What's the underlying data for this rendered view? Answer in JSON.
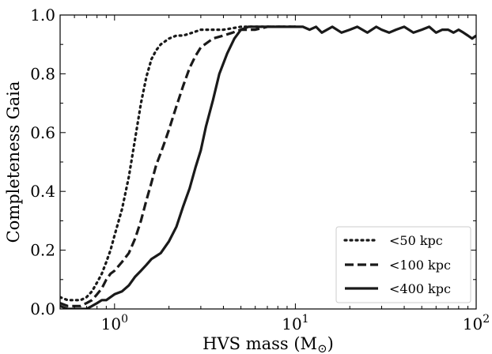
{
  "chart_data": {
    "type": "line",
    "xlabel": "HVS mass (M",
    "xlabel_sub": "⊙",
    "xlabel_close": ")",
    "ylabel": "Completeness Gaia",
    "x_scale": "log",
    "xlim": [
      0.5,
      100
    ],
    "ylim": [
      0.0,
      1.0
    ],
    "x_ticks": [
      {
        "value": 1,
        "base": "10",
        "exp": "0"
      },
      {
        "value": 10,
        "base": "10",
        "exp": "1"
      },
      {
        "value": 100,
        "base": "10",
        "exp": "2"
      }
    ],
    "y_ticks": [
      {
        "value": 0.0,
        "label": "0.0"
      },
      {
        "value": 0.2,
        "label": "0.2"
      },
      {
        "value": 0.4,
        "label": "0.4"
      },
      {
        "value": 0.6,
        "label": "0.6"
      },
      {
        "value": 0.8,
        "label": "0.8"
      },
      {
        "value": 1.0,
        "label": "1.0"
      }
    ],
    "grid": false,
    "legend_position": "lower-right",
    "series": [
      {
        "name": "<50 kpc",
        "style": "dotted",
        "x": [
          0.5,
          0.55,
          0.6,
          0.65,
          0.7,
          0.75,
          0.8,
          0.85,
          0.9,
          0.95,
          1.0,
          1.1,
          1.2,
          1.3,
          1.4,
          1.5,
          1.6,
          1.7,
          1.8,
          1.9,
          2.0,
          2.2,
          2.4,
          2.7,
          3.0,
          3.5,
          4.0,
          5.0,
          6.0,
          7.0,
          8.0,
          10.0
        ],
        "y": [
          0.04,
          0.03,
          0.03,
          0.03,
          0.04,
          0.06,
          0.09,
          0.12,
          0.16,
          0.2,
          0.25,
          0.34,
          0.45,
          0.58,
          0.7,
          0.79,
          0.85,
          0.88,
          0.9,
          0.91,
          0.92,
          0.93,
          0.93,
          0.94,
          0.95,
          0.95,
          0.95,
          0.96,
          0.96,
          0.96,
          0.96,
          0.96
        ]
      },
      {
        "name": "<100 kpc",
        "style": "dashed",
        "x": [
          0.5,
          0.55,
          0.6,
          0.65,
          0.7,
          0.75,
          0.8,
          0.85,
          0.9,
          0.95,
          1.0,
          1.1,
          1.2,
          1.3,
          1.4,
          1.5,
          1.6,
          1.7,
          1.8,
          1.9,
          2.0,
          2.2,
          2.4,
          2.6,
          2.8,
          3.0,
          3.5,
          4.0,
          4.5,
          5.0,
          6.0,
          7.0,
          8.0,
          10.0
        ],
        "y": [
          0.02,
          0.01,
          0.01,
          0.01,
          0.02,
          0.03,
          0.05,
          0.07,
          0.1,
          0.12,
          0.13,
          0.16,
          0.19,
          0.24,
          0.3,
          0.37,
          0.43,
          0.49,
          0.53,
          0.57,
          0.61,
          0.69,
          0.76,
          0.82,
          0.86,
          0.89,
          0.92,
          0.93,
          0.94,
          0.95,
          0.95,
          0.96,
          0.96,
          0.96
        ]
      },
      {
        "name": "<400 kpc",
        "style": "solid",
        "x": [
          0.5,
          0.55,
          0.6,
          0.65,
          0.7,
          0.75,
          0.8,
          0.85,
          0.9,
          0.95,
          1.0,
          1.1,
          1.2,
          1.3,
          1.4,
          1.5,
          1.6,
          1.7,
          1.8,
          2.0,
          2.2,
          2.4,
          2.6,
          2.8,
          3.0,
          3.2,
          3.5,
          3.8,
          4.2,
          4.6,
          5.0,
          5.5,
          6.0,
          7.0,
          8.0,
          9.0,
          10.0,
          11.0,
          12.0,
          13.0,
          14.0,
          16.0,
          18.0,
          20.0,
          22.0,
          25.0,
          28.0,
          30.0,
          33.0,
          36.0,
          40.0,
          45.0,
          50.0,
          55.0,
          60.0,
          65.0,
          70.0,
          75.0,
          80.0,
          85.0,
          90.0,
          95.0,
          100.0
        ],
        "y": [
          0.01,
          0.0,
          0.0,
          0.0,
          0.0,
          0.01,
          0.02,
          0.03,
          0.03,
          0.04,
          0.05,
          0.06,
          0.08,
          0.11,
          0.13,
          0.15,
          0.17,
          0.18,
          0.19,
          0.23,
          0.28,
          0.35,
          0.41,
          0.48,
          0.54,
          0.62,
          0.71,
          0.8,
          0.87,
          0.92,
          0.95,
          0.96,
          0.96,
          0.96,
          0.96,
          0.96,
          0.96,
          0.96,
          0.95,
          0.96,
          0.94,
          0.96,
          0.94,
          0.95,
          0.96,
          0.94,
          0.96,
          0.95,
          0.94,
          0.95,
          0.96,
          0.94,
          0.95,
          0.96,
          0.94,
          0.95,
          0.95,
          0.94,
          0.95,
          0.94,
          0.93,
          0.92,
          0.93
        ]
      }
    ]
  }
}
